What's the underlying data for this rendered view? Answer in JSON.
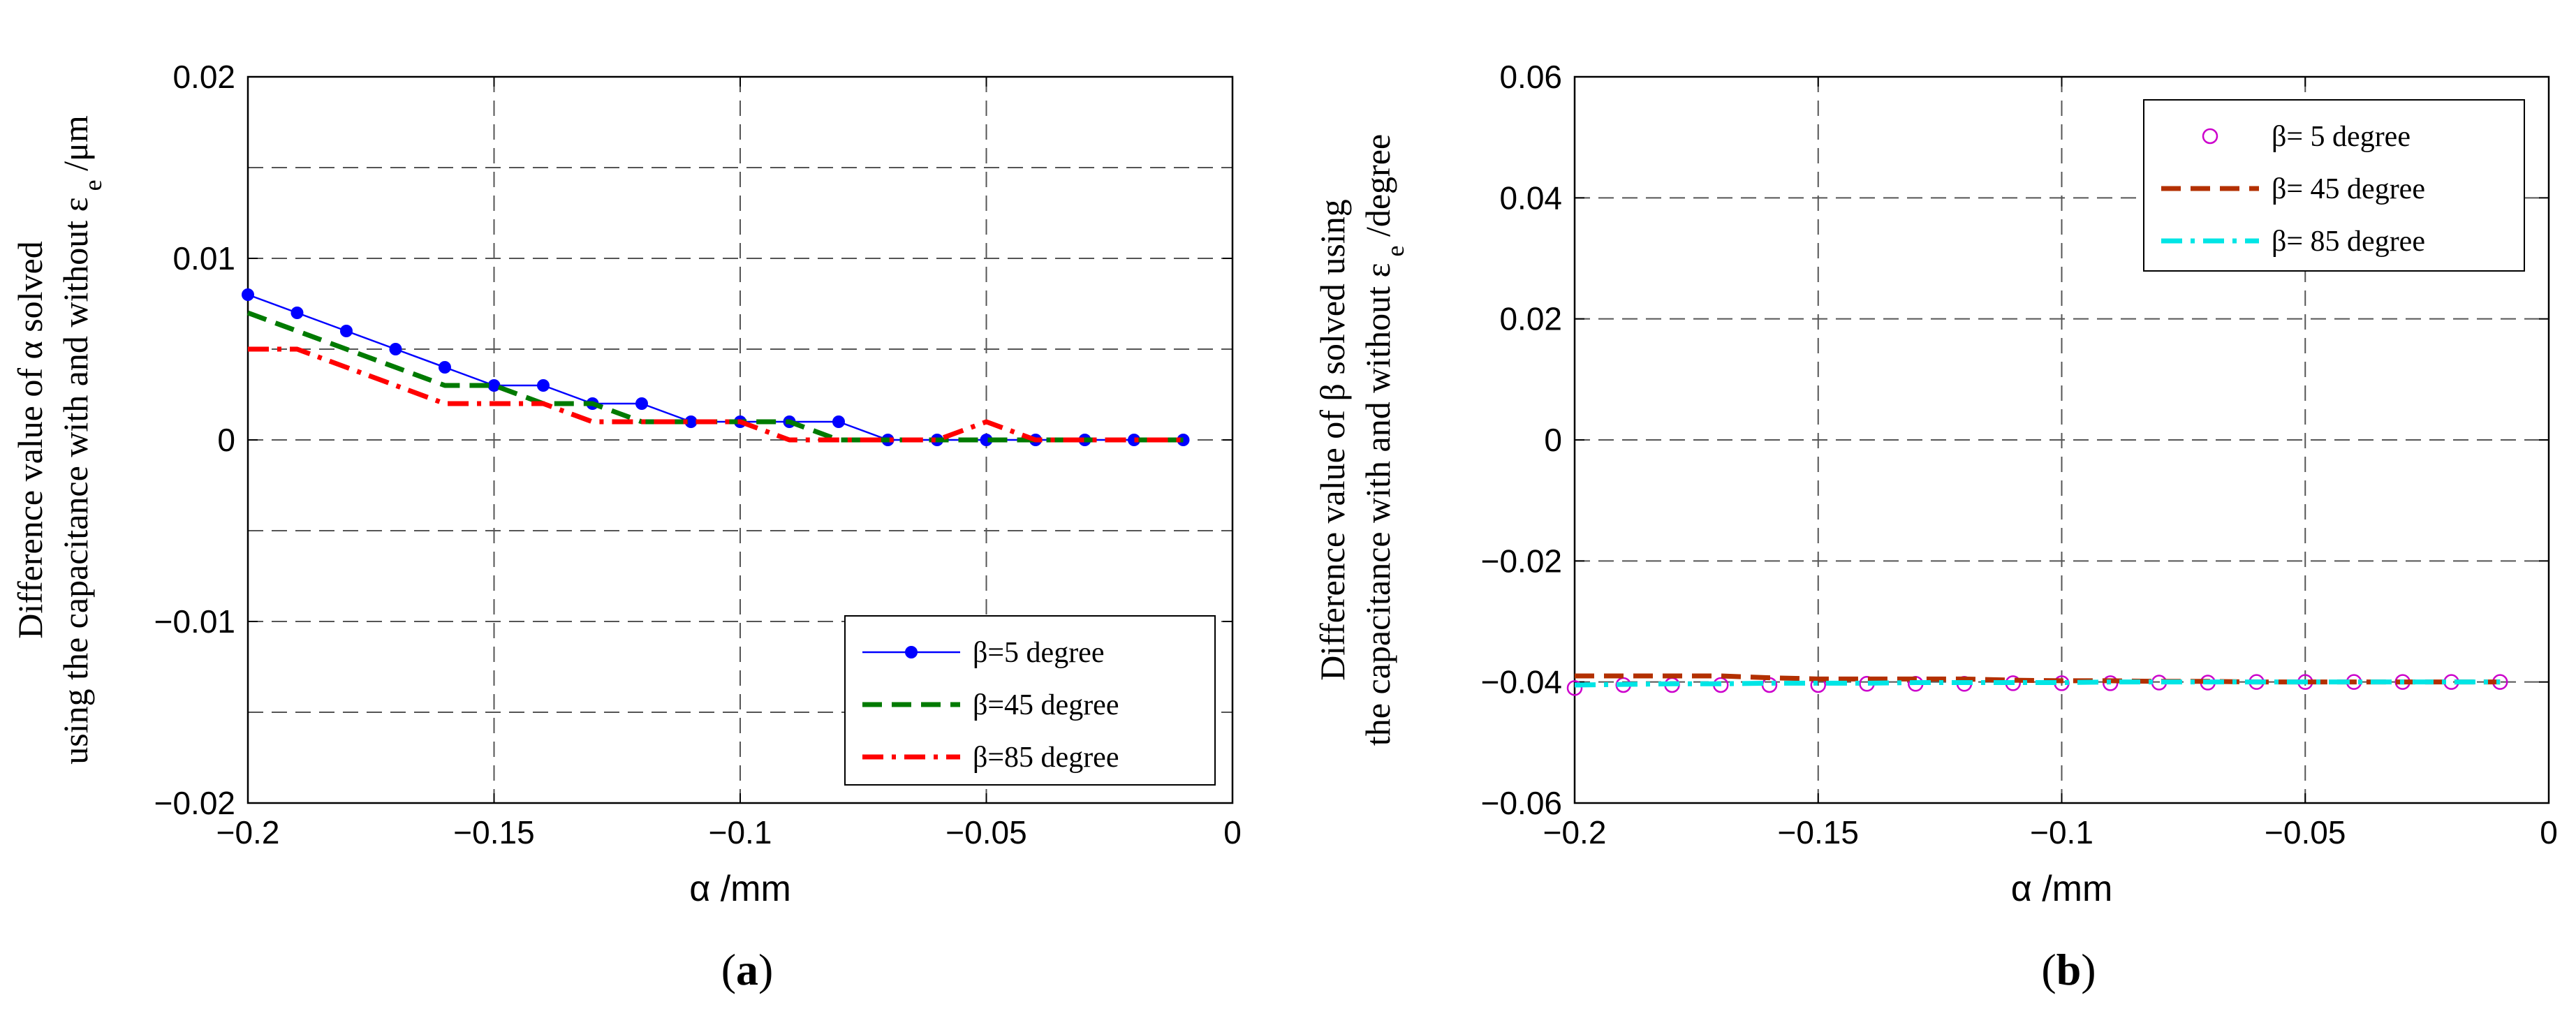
{
  "chart_data": [
    {
      "type": "line",
      "panel": "a",
      "caption": "(a)",
      "xlabel": "α /mm",
      "ylabel_line1": "Difference value of α solved",
      "ylabel_line2": "using the capacitance with and without ε",
      "ylabel_subscript": "e",
      "ylabel_unit": "/μm",
      "xlim": [
        -0.2,
        0
      ],
      "ylim": [
        -0.02,
        0.02
      ],
      "xticks": [
        -0.2,
        -0.15,
        -0.1,
        -0.05,
        0
      ],
      "xtick_labels": [
        "−0.2",
        "−0.15",
        "−0.1",
        "−0.05",
        "0"
      ],
      "yticks": [
        -0.02,
        -0.01,
        0,
        0.01,
        0.02
      ],
      "ytick_labels": [
        "−0.02",
        "−0.01",
        "0",
        "0.01",
        "0.02"
      ],
      "ygrid_extra": [
        -0.015,
        -0.005,
        0.005,
        0.015
      ],
      "legend_position": "bottom-right",
      "series": [
        {
          "name": "β=5 degree",
          "color": "#0000ff",
          "style": "solid-dot",
          "x": [
            -0.2,
            -0.19,
            -0.18,
            -0.17,
            -0.16,
            -0.15,
            -0.14,
            -0.13,
            -0.12,
            -0.11,
            -0.1,
            -0.09,
            -0.08,
            -0.07,
            -0.06,
            -0.05,
            -0.04,
            -0.03,
            -0.02,
            -0.01
          ],
          "y": [
            0.008,
            0.007,
            0.006,
            0.005,
            0.004,
            0.003,
            0.003,
            0.002,
            0.002,
            0.001,
            0.001,
            0.001,
            0.001,
            0,
            0,
            0,
            0,
            0,
            0,
            0
          ]
        },
        {
          "name": "β=45 degree",
          "color": "#007a00",
          "style": "dashed",
          "x": [
            -0.2,
            -0.19,
            -0.18,
            -0.17,
            -0.16,
            -0.15,
            -0.14,
            -0.13,
            -0.12,
            -0.11,
            -0.1,
            -0.09,
            -0.08,
            -0.07,
            -0.06,
            -0.05,
            -0.04,
            -0.03,
            -0.02,
            -0.01
          ],
          "y": [
            0.007,
            0.006,
            0.005,
            0.004,
            0.003,
            0.003,
            0.002,
            0.002,
            0.001,
            0.001,
            0.001,
            0.001,
            0,
            0,
            0,
            0,
            0,
            0,
            0,
            0
          ]
        },
        {
          "name": "β=85 degree",
          "color": "#ff0000",
          "style": "dashdot",
          "x": [
            -0.2,
            -0.19,
            -0.18,
            -0.17,
            -0.16,
            -0.15,
            -0.14,
            -0.13,
            -0.12,
            -0.11,
            -0.1,
            -0.09,
            -0.08,
            -0.07,
            -0.06,
            -0.05,
            -0.04,
            -0.03,
            -0.02,
            -0.01
          ],
          "y": [
            0.005,
            0.005,
            0.004,
            0.003,
            0.002,
            0.002,
            0.002,
            0.001,
            0.001,
            0.001,
            0.001,
            0,
            0,
            0,
            0,
            0.001,
            0,
            0,
            0,
            0
          ]
        }
      ]
    },
    {
      "type": "line",
      "panel": "b",
      "caption": "(b)",
      "xlabel": "α /mm",
      "ylabel_line1": "Difference value of β solved using",
      "ylabel_line2": "the capacitance with and without ε",
      "ylabel_subscript": "e",
      "ylabel_unit": "/degree",
      "xlim": [
        -0.2,
        0
      ],
      "ylim": [
        -0.06,
        0.06
      ],
      "xticks": [
        -0.2,
        -0.15,
        -0.1,
        -0.05,
        0
      ],
      "xtick_labels": [
        "−0.2",
        "−0.15",
        "−0.1",
        "−0.05",
        "0"
      ],
      "yticks": [
        -0.06,
        -0.04,
        -0.02,
        0,
        0.02,
        0.04,
        0.06
      ],
      "ytick_labels": [
        "−0.06",
        "−0.04",
        "−0.02",
        "0",
        "0.02",
        "0.04",
        "0.06"
      ],
      "ygrid_extra": [],
      "legend_position": "top-right",
      "series": [
        {
          "name": "β= 5 degree",
          "color": "#cc00cc",
          "style": "circle",
          "x": [
            -0.2,
            -0.19,
            -0.18,
            -0.17,
            -0.16,
            -0.15,
            -0.14,
            -0.13,
            -0.12,
            -0.11,
            -0.1,
            -0.09,
            -0.08,
            -0.07,
            -0.06,
            -0.05,
            -0.04,
            -0.03,
            -0.02,
            -0.01
          ],
          "y": [
            -0.041,
            -0.0405,
            -0.0405,
            -0.0405,
            -0.0405,
            -0.0405,
            -0.0403,
            -0.0403,
            -0.0403,
            -0.0402,
            -0.0402,
            -0.0402,
            -0.0401,
            -0.0401,
            -0.04,
            -0.04,
            -0.04,
            -0.04,
            -0.04,
            -0.04
          ]
        },
        {
          "name": "β= 45 degree",
          "color": "#b33000",
          "style": "dashed",
          "x": [
            -0.2,
            -0.19,
            -0.18,
            -0.17,
            -0.16,
            -0.15,
            -0.14,
            -0.13,
            -0.12,
            -0.11,
            -0.1,
            -0.09,
            -0.08,
            -0.07,
            -0.06,
            -0.05,
            -0.04,
            -0.03,
            -0.02,
            -0.01
          ],
          "y": [
            -0.039,
            -0.039,
            -0.039,
            -0.039,
            -0.0393,
            -0.0395,
            -0.0395,
            -0.0395,
            -0.0395,
            -0.0397,
            -0.0398,
            -0.0398,
            -0.0399,
            -0.0399,
            -0.04,
            -0.04,
            -0.04,
            -0.04,
            -0.04,
            -0.04
          ]
        },
        {
          "name": "β= 85 degree",
          "color": "#00e5e5",
          "style": "dashdot",
          "x": [
            -0.2,
            -0.19,
            -0.18,
            -0.17,
            -0.16,
            -0.15,
            -0.14,
            -0.13,
            -0.12,
            -0.11,
            -0.1,
            -0.09,
            -0.08,
            -0.07,
            -0.06,
            -0.05,
            -0.04,
            -0.03,
            -0.02,
            -0.01
          ],
          "y": [
            -0.0405,
            -0.0404,
            -0.0403,
            -0.0403,
            -0.0402,
            -0.0402,
            -0.0402,
            -0.0401,
            -0.0401,
            -0.0401,
            -0.0401,
            -0.04,
            -0.04,
            -0.04,
            -0.04,
            -0.04,
            -0.04,
            -0.04,
            -0.04,
            -0.04
          ]
        }
      ]
    }
  ]
}
